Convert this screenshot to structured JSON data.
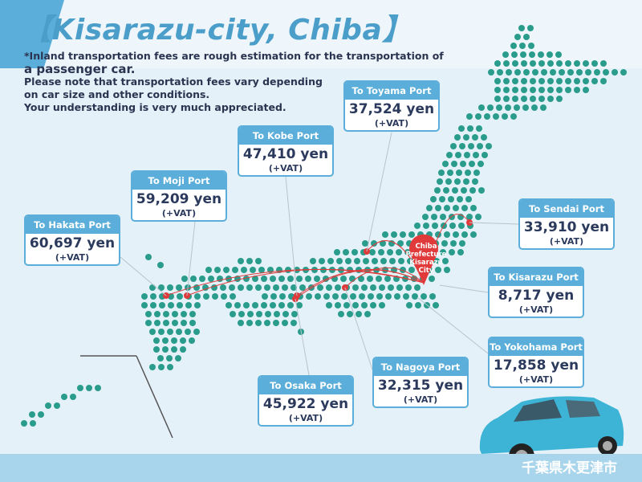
{
  "title": "【Kisarazu-city, Chiba】",
  "note": {
    "line1": "*Inland transportation fees are rough estimation for the transportation of",
    "line2": "a passenger car.",
    "line3": "Please note that transportation fees vary depending",
    "line4": "on car size and other conditions.",
    "line5": "Your understanding is very much appreciated."
  },
  "origin": {
    "l1": "Chiba",
    "l2": "Prefecture",
    "l3": "Kisarazu",
    "l4": "City"
  },
  "ports": [
    {
      "name": "To Toyama Port",
      "fee": "37,524 yen",
      "vat": "(+VAT)"
    },
    {
      "name": "To Kobe Port",
      "fee": "47,410 yen",
      "vat": "(+VAT)"
    },
    {
      "name": "To Moji Port",
      "fee": "59,209 yen",
      "vat": "(+VAT)"
    },
    {
      "name": "To Hakata Port",
      "fee": "60,697 yen",
      "vat": "(+VAT)"
    },
    {
      "name": "To Sendai Port",
      "fee": "33,910 yen",
      "vat": "(+VAT)"
    },
    {
      "name": "To Kisarazu Port",
      "fee": "8,717 yen",
      "vat": "(+VAT)"
    },
    {
      "name": "To Yokohama Port",
      "fee": "17,858 yen",
      "vat": "(+VAT)"
    },
    {
      "name": "To Nagoya Port",
      "fee": "32,315 yen",
      "vat": "(+VAT)"
    },
    {
      "name": "To Osaka Port",
      "fee": "45,922 yen",
      "vat": "(+VAT)"
    }
  ],
  "footer_jp": "千葉県木更津市",
  "colors": {
    "accent": "#5aaed9",
    "dots": "#2a9c8c",
    "route": "#e03a3a",
    "text": "#2b3a5c"
  }
}
